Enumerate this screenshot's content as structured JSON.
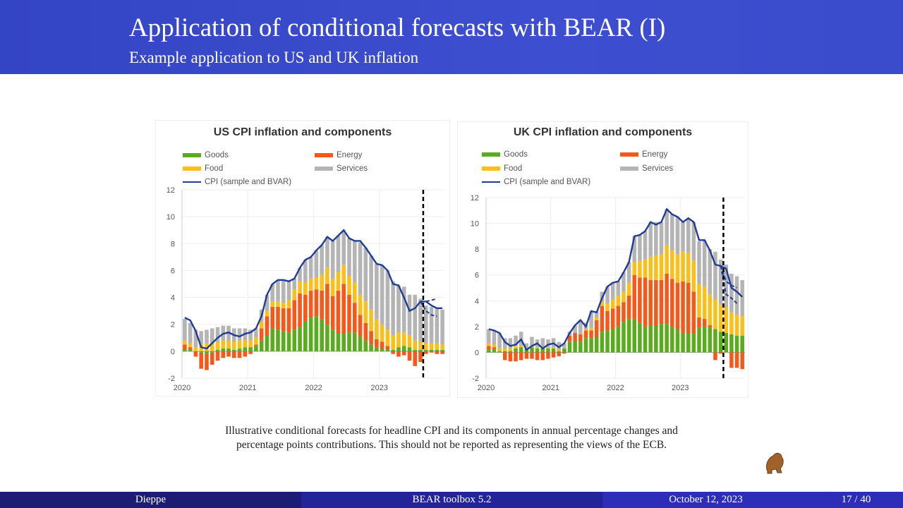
{
  "header": {
    "title": "Application of conditional forecasts with BEAR (I)",
    "subtitle": "Example application to US and UK inflation"
  },
  "colors": {
    "goods": "#5aab1e",
    "energy": "#f4591a",
    "food": "#f9bf1a",
    "services": "#b4b4b4",
    "cpi": "#1f3c96",
    "header": "#3a4ccc"
  },
  "legend": {
    "goods": "Goods",
    "energy": "Energy",
    "food": "Food",
    "services": "Services",
    "cpi": "CPI (sample and BVAR)"
  },
  "chart_data": [
    {
      "type": "bar",
      "stacked": true,
      "title": "US CPI inflation and components",
      "start": "2020-01",
      "frequency": "monthly",
      "xticks": [
        "2020",
        "2021",
        "2022",
        "2023"
      ],
      "yticks": [
        "-2",
        "0",
        "2",
        "4",
        "6",
        "8",
        "10",
        "12"
      ],
      "ylim": [
        -2,
        12
      ],
      "forecast_start": "2023-08",
      "series": [
        {
          "name": "Goods",
          "values": [
            0.1,
            0.1,
            0,
            -0.1,
            -0.2,
            -0.1,
            0.1,
            0.2,
            0.2,
            0.1,
            0.2,
            0.3,
            0.3,
            0.4,
            0.8,
            1.2,
            1.7,
            1.6,
            1.5,
            1.4,
            1.6,
            1.8,
            2.2,
            2.5,
            2.6,
            2.4,
            2.0,
            1.6,
            1.3,
            1.3,
            1.4,
            1.4,
            1.1,
            0.8,
            0.5,
            0.3,
            0.2,
            0.1,
            0.1,
            0.3,
            0.4,
            0.3,
            0.1,
            0.1,
            0.1,
            0.1,
            0.1,
            0.1
          ]
        },
        {
          "name": "Energy",
          "values": [
            0.4,
            0.2,
            -0.4,
            -1.2,
            -1.2,
            -0.9,
            -0.7,
            -0.5,
            -0.4,
            -0.5,
            -0.5,
            -0.4,
            -0.2,
            0.1,
            0.9,
            1.4,
            1.6,
            1.7,
            1.7,
            1.8,
            2.2,
            2.5,
            2.0,
            2.0,
            2.0,
            2.1,
            3.0,
            2.5,
            3.2,
            3.7,
            2.8,
            2.2,
            1.6,
            1.3,
            1.0,
            0.6,
            0.5,
            0.3,
            -0.2,
            -0.4,
            -0.3,
            -0.7,
            -1.1,
            -0.8,
            -0.2,
            -0.1,
            -0.2,
            -0.2
          ]
        },
        {
          "name": "Food",
          "values": [
            0.3,
            0.3,
            0.3,
            0.5,
            0.6,
            0.6,
            0.6,
            0.6,
            0.6,
            0.6,
            0.6,
            0.5,
            0.5,
            0.5,
            0.5,
            0.4,
            0.4,
            0.4,
            0.4,
            0.6,
            0.8,
            0.9,
            0.9,
            0.9,
            0.9,
            1.2,
            1.2,
            1.3,
            1.4,
            1.4,
            1.4,
            1.5,
            1.5,
            1.6,
            1.6,
            1.5,
            1.3,
            1.2,
            1.1,
            1.1,
            1.0,
            0.9,
            0.7,
            0.6,
            0.5,
            0.5,
            0.5,
            0.4
          ]
        },
        {
          "name": "Services",
          "values": [
            1.6,
            1.5,
            1.3,
            1.0,
            1.0,
            1.1,
            1.1,
            1.1,
            1.1,
            1.0,
            0.9,
            0.9,
            0.8,
            0.7,
            0.9,
            1.2,
            1.3,
            1.6,
            1.7,
            1.4,
            0.8,
            1.0,
            1.7,
            1.6,
            2.0,
            2.2,
            2.3,
            2.8,
            2.7,
            2.6,
            2.8,
            3.1,
            3.9,
            4.0,
            4.0,
            4.1,
            4.4,
            4.4,
            4.0,
            3.5,
            3.4,
            3.0,
            3.4,
            3.2,
            2.8,
            2.7,
            2.6,
            2.6
          ]
        },
        {
          "name": "CPI (sample and BVAR)",
          "type": "line",
          "values": [
            2.5,
            2.3,
            1.5,
            0.3,
            0.2,
            0.6,
            1.0,
            1.3,
            1.4,
            1.2,
            1.1,
            1.3,
            1.4,
            1.7,
            2.6,
            4.2,
            5.0,
            5.3,
            5.3,
            5.2,
            5.4,
            6.2,
            6.8,
            7.0,
            7.5,
            7.9,
            8.5,
            8.2,
            8.6,
            9.0,
            8.4,
            8.2,
            8.2,
            7.7,
            7.1,
            6.5,
            6.4,
            6.0,
            5.0,
            4.9,
            4.0,
            3.0,
            3.2,
            3.7,
            3.7,
            3.4,
            3.2,
            3.2
          ]
        },
        {
          "type": "dashed",
          "start": "2023-08",
          "values": [
            3.7,
            3.7,
            3.8,
            3.9
          ]
        },
        {
          "type": "dashed",
          "start": "2023-08",
          "values": [
            3.7,
            3.0,
            2.7,
            2.6
          ]
        }
      ]
    },
    {
      "type": "bar",
      "stacked": true,
      "title": "UK CPI inflation and components",
      "start": "2020-01",
      "frequency": "monthly",
      "xticks": [
        "2020",
        "2021",
        "2022",
        "2023"
      ],
      "yticks": [
        "-2",
        "0",
        "2",
        "4",
        "6",
        "8",
        "10",
        "12"
      ],
      "ylim": [
        -2,
        12
      ],
      "forecast_start": "2023-08",
      "series": [
        {
          "name": "Goods",
          "values": [
            0.2,
            0.2,
            0.1,
            0.1,
            0.1,
            0.3,
            0.4,
            0.3,
            0.4,
            0.3,
            0.3,
            0.3,
            0.3,
            0.1,
            0.3,
            0.8,
            0.9,
            0.8,
            1.1,
            1.1,
            1.2,
            1.6,
            1.7,
            1.8,
            2.0,
            2.4,
            2.6,
            2.6,
            2.3,
            2.0,
            2.1,
            2.1,
            2.2,
            2.2,
            2.0,
            1.8,
            1.5,
            1.5,
            1.5,
            1.9,
            2.0,
            1.9,
            1.8,
            1.6,
            1.5,
            1.4,
            1.3,
            1.3
          ]
        },
        {
          "name": "Energy",
          "values": [
            0.3,
            0.2,
            0,
            -0.6,
            -0.7,
            -0.7,
            -0.6,
            -0.5,
            -0.5,
            -0.6,
            -0.6,
            -0.5,
            -0.4,
            -0.3,
            -0.1,
            0.5,
            0.6,
            0.6,
            0.6,
            0.6,
            1.3,
            2.0,
            1.5,
            1.6,
            1.6,
            1.5,
            1.8,
            3.4,
            3.5,
            3.8,
            3.5,
            3.5,
            3.4,
            3.9,
            3.7,
            3.6,
            4.0,
            3.9,
            3.2,
            0.8,
            0.6,
            0.2,
            -0.6,
            -0.1,
            0,
            -1.2,
            -1.2,
            -1.3
          ]
        },
        {
          "name": "Food",
          "values": [
            0.2,
            0.2,
            0.2,
            0.2,
            0.2,
            0.2,
            0.1,
            0.1,
            0.1,
            0.1,
            0.1,
            0.1,
            0.1,
            0.1,
            0,
            0,
            0,
            0,
            0.1,
            0.2,
            0.2,
            0.3,
            0.6,
            0.7,
            0.8,
            0.8,
            1.0,
            1.0,
            1.3,
            1.4,
            1.8,
            1.9,
            2.0,
            2.2,
            2.2,
            2.2,
            2.3,
            2.3,
            2.4,
            2.6,
            2.5,
            2.4,
            2.3,
            2.1,
            2.0,
            1.7,
            1.6,
            1.5
          ]
        },
        {
          "name": "Services",
          "values": [
            1.1,
            1.1,
            1.2,
            0.8,
            0.8,
            0.8,
            1.1,
            0.3,
            0.7,
            0.6,
            0.7,
            0.6,
            0.7,
            0.6,
            0.4,
            0.3,
            0.6,
            1.1,
            0.5,
            1.3,
            0.5,
            0.8,
            1.3,
            1.3,
            1.1,
            1.5,
            1.6,
            2.0,
            2.0,
            2.2,
            2.7,
            2.6,
            2.5,
            2.8,
            2.8,
            2.9,
            2.3,
            2.7,
            3.0,
            3.3,
            3.6,
            3.5,
            3.7,
            3.5,
            3.3,
            3.0,
            3.0,
            2.8
          ]
        },
        {
          "name": "CPI (sample and BVAR)",
          "type": "line",
          "values": [
            1.8,
            1.7,
            1.5,
            0.8,
            0.5,
            0.6,
            1.0,
            0.2,
            0.5,
            0.7,
            0.3,
            0.6,
            0.7,
            0.4,
            0.7,
            1.5,
            2.1,
            2.5,
            2.0,
            3.2,
            3.1,
            4.2,
            5.1,
            5.4,
            5.5,
            6.2,
            7.0,
            9.0,
            9.1,
            9.4,
            10.1,
            9.9,
            10.1,
            11.1,
            10.7,
            10.5,
            10.1,
            10.4,
            10.1,
            8.7,
            8.7,
            7.9,
            6.8,
            6.7,
            6.5,
            5.0,
            4.7,
            4.3
          ]
        },
        {
          "type": "dashed",
          "start": "2023-08",
          "values": [
            6.7,
            5.5,
            5.2,
            5.0
          ]
        },
        {
          "type": "dashed",
          "start": "2023-08",
          "values": [
            6.7,
            4.5,
            4.2,
            3.8
          ]
        }
      ]
    }
  ],
  "caption": {
    "line1": "Illustrative conditional forecasts for headline CPI and its components in annual percentage changes and",
    "line2": "percentage points contributions. This should not be reported as representing the views of the ECB."
  },
  "footer": {
    "author": "Dieppe",
    "title": "BEAR toolbox 5.2",
    "date": "October 12, 2023",
    "page": "17 / 40"
  }
}
